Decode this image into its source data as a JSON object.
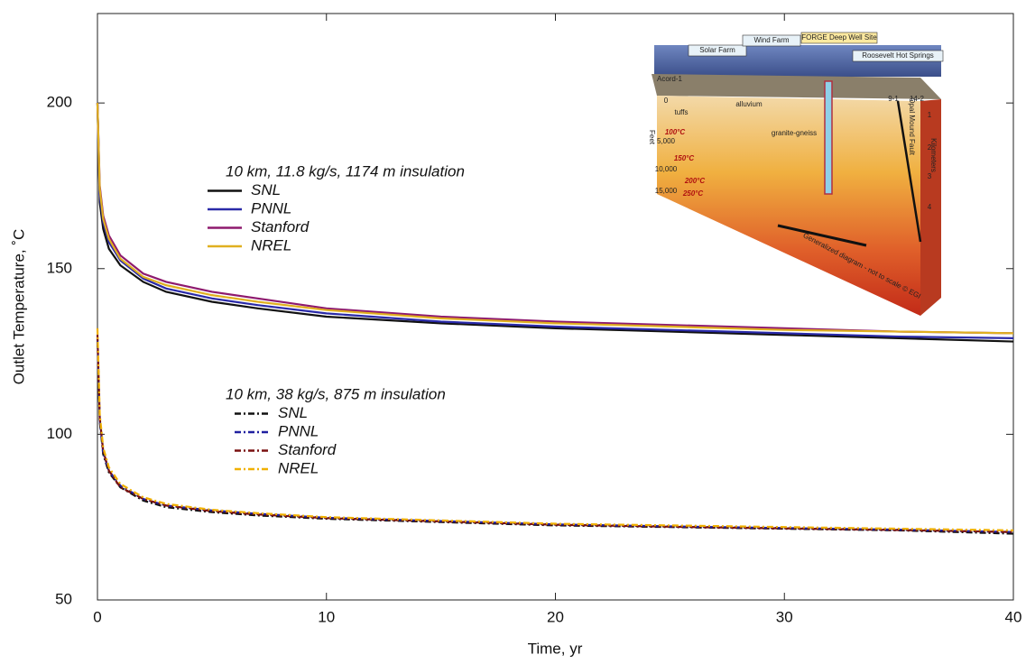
{
  "chart_data": {
    "type": "line",
    "xlabel": "Time, yr",
    "ylabel": "Outlet Temperature, ˚C",
    "xlim": [
      0,
      40
    ],
    "ylim": [
      50,
      227
    ],
    "xticks": [
      0,
      10,
      20,
      30,
      40
    ],
    "yticks": [
      50,
      100,
      150,
      200
    ],
    "x": [
      0,
      0.1,
      0.25,
      0.5,
      1,
      2,
      3,
      5,
      7,
      10,
      15,
      20,
      25,
      30,
      35,
      40
    ],
    "legend_groups": [
      "10 km, 11.8 kg/s, 1174 m insulation",
      "10 km, 38 kg/s, 875 m insulation"
    ],
    "series": [
      {
        "name": "SNL",
        "color": "#111111",
        "style": "solid",
        "group": 0,
        "values": [
          200,
          170,
          162,
          156,
          151,
          146,
          143,
          140,
          138,
          135.5,
          133.5,
          132,
          131,
          130,
          129,
          128
        ]
      },
      {
        "name": "PNNL",
        "color": "#2a2aa8",
        "style": "solid",
        "group": 0,
        "values": [
          200,
          172,
          164,
          158,
          152.5,
          147,
          144,
          141,
          139,
          136.5,
          134,
          132.5,
          131.5,
          130.5,
          129.5,
          129
        ]
      },
      {
        "name": "Stanford",
        "color": "#8e1a6e",
        "style": "solid",
        "group": 0,
        "values": [
          200,
          175,
          166,
          160,
          154,
          148.5,
          146,
          143,
          141,
          138,
          135.5,
          134,
          133,
          132,
          131,
          130.5
        ]
      },
      {
        "name": "NREL",
        "color": "#e0b020",
        "style": "solid",
        "group": 0,
        "values": [
          200,
          174,
          165,
          159,
          153,
          147.5,
          145,
          142,
          140,
          137.5,
          135,
          133.5,
          132.5,
          131.5,
          131,
          130.5
        ]
      },
      {
        "name": "SNL",
        "color": "#111111",
        "style": "dashdot",
        "group": 1,
        "values": [
          128,
          104,
          94,
          88.5,
          84,
          80,
          78,
          76.5,
          75.5,
          74.5,
          73.5,
          72.5,
          72,
          71.5,
          71,
          70
        ]
      },
      {
        "name": "PNNL",
        "color": "#2020a0",
        "style": "dashdot",
        "group": 1,
        "values": [
          129,
          104.5,
          94.5,
          89,
          84.5,
          80.5,
          78.5,
          77,
          76,
          74.8,
          73.8,
          72.8,
          72.2,
          71.7,
          71.2,
          70.5
        ]
      },
      {
        "name": "Stanford",
        "color": "#7a1010",
        "style": "dashdot",
        "group": 1,
        "values": [
          130,
          105,
          95,
          89,
          84,
          80.5,
          78.5,
          76.8,
          75.8,
          74.7,
          73.7,
          72.7,
          72.1,
          71.6,
          71.1,
          70.5
        ]
      },
      {
        "name": "NREL",
        "color": "#f0b000",
        "style": "dashdot",
        "group": 1,
        "values": [
          132,
          106,
          96,
          90,
          85,
          81,
          79,
          77.2,
          76.2,
          75,
          74,
          73,
          72.5,
          72,
          71.5,
          71
        ]
      }
    ]
  },
  "inset": {
    "labels": [
      "Solar Farm",
      "Wind Farm",
      "FORGE Deep Well Site",
      "Roosevelt Hot Springs",
      "Acord-1",
      "alluvium",
      "tuffs",
      "granite-gneiss",
      "100°C",
      "150°C",
      "200°C",
      "250°C",
      "Feet",
      "0",
      "5,000",
      "10,000",
      "15,000",
      "Kilometers",
      "1",
      "2",
      "3",
      "4",
      "9-1",
      "14-2",
      "Opal Mound Fault",
      "Generalized diagram - not to scale © EGI"
    ]
  }
}
